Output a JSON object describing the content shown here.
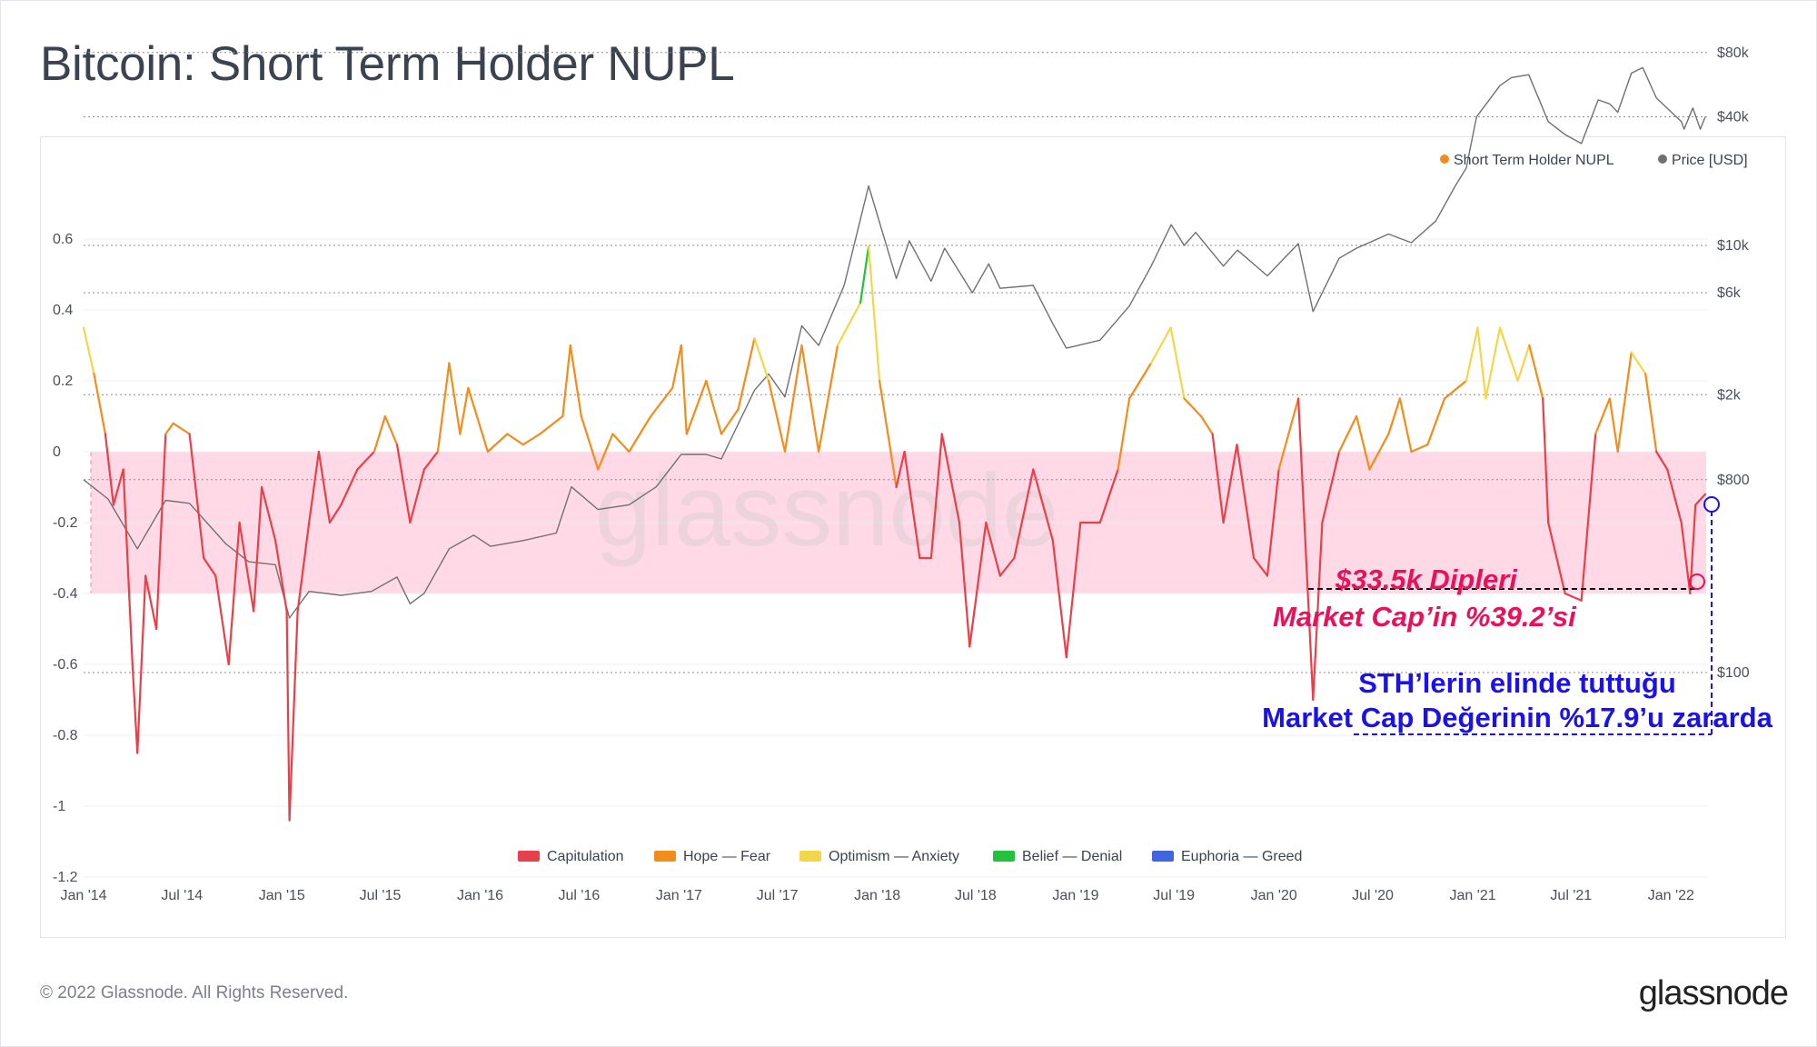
{
  "title": "Bitcoin: Short Term Holder NUPL",
  "footer": {
    "copyright": "© 2022 Glassnode. All Rights Reserved.",
    "brand": "glassnode"
  },
  "watermark": "glassnode",
  "colors": {
    "capitulation": "#e8404a",
    "hope_fear": "#f28c1a",
    "optimism_anxiety": "#f4d64a",
    "belief_denial": "#22c33a",
    "euphoria_greed": "#3f66e0",
    "price": "#707070",
    "zone_fill": "#ffd2e1",
    "annotation_pink": "#e8115a",
    "annotation_blue": "#1a12e8"
  },
  "chart_data": {
    "type": "line",
    "title": "Bitcoin: Short Term Holder NUPL",
    "top_legend": [
      {
        "name": "Short Term Holder NUPL",
        "color": "#f28c1a"
      },
      {
        "name": "Price [USD]",
        "color": "#707070"
      }
    ],
    "bottom_legend": [
      {
        "name": "Capitulation",
        "color": "#e8404a"
      },
      {
        "name": "Hope — Fear",
        "color": "#f28c1a"
      },
      {
        "name": "Optimism — Anxiety",
        "color": "#f4d64a"
      },
      {
        "name": "Belief — Denial",
        "color": "#22c33a"
      },
      {
        "name": "Euphoria — Greed",
        "color": "#3f66e0"
      }
    ],
    "x_ticks": [
      "Jan '14",
      "Jul '14",
      "Jan '15",
      "Jul '15",
      "Jan '16",
      "Jul '16",
      "Jan '17",
      "Jul '17",
      "Jan '18",
      "Jul '18",
      "Jan '19",
      "Jul '19",
      "Jan '20",
      "Jul '20",
      "Jan '21",
      "Jul '21",
      "Jan '22"
    ],
    "x_range": [
      "2014-01-01",
      "2022-03-10"
    ],
    "y_left": {
      "ticks": [
        "0.6",
        "0.4",
        "0.2",
        "0",
        "-0.2",
        "-0.4",
        "-0.6",
        "-0.8",
        "-1",
        "-1.2"
      ],
      "range": [
        -1.2,
        0.7
      ]
    },
    "y_right": {
      "ticks": [
        "$80k",
        "$40k",
        "$10k",
        "$6k",
        "$2k",
        "$800",
        "$100"
      ],
      "scale": "log"
    },
    "zone": {
      "from": -0.4,
      "to": 0
    },
    "nupl_series": {
      "name": "Short Term Holder NUPL",
      "points": [
        [
          "2014-01-01",
          0.35
        ],
        [
          "2014-01-20",
          0.22
        ],
        [
          "2014-02-10",
          0.05
        ],
        [
          "2014-02-25",
          -0.15
        ],
        [
          "2014-03-15",
          -0.05
        ],
        [
          "2014-04-01",
          -0.6
        ],
        [
          "2014-04-10",
          -0.85
        ],
        [
          "2014-04-25",
          -0.35
        ],
        [
          "2014-05-15",
          -0.5
        ],
        [
          "2014-06-01",
          0.05
        ],
        [
          "2014-06-15",
          0.08
        ],
        [
          "2014-07-15",
          0.05
        ],
        [
          "2014-08-10",
          -0.3
        ],
        [
          "2014-09-01",
          -0.35
        ],
        [
          "2014-09-25",
          -0.6
        ],
        [
          "2014-10-15",
          -0.2
        ],
        [
          "2014-11-10",
          -0.45
        ],
        [
          "2014-11-25",
          -0.1
        ],
        [
          "2014-12-20",
          -0.25
        ],
        [
          "2015-01-10",
          -0.45
        ],
        [
          "2015-01-15",
          -1.04
        ],
        [
          "2015-01-30",
          -0.45
        ],
        [
          "2015-02-20",
          -0.2
        ],
        [
          "2015-03-10",
          0.0
        ],
        [
          "2015-03-30",
          -0.2
        ],
        [
          "2015-04-20",
          -0.15
        ],
        [
          "2015-05-20",
          -0.05
        ],
        [
          "2015-06-20",
          0.0
        ],
        [
          "2015-07-10",
          0.1
        ],
        [
          "2015-08-01",
          0.02
        ],
        [
          "2015-08-25",
          -0.2
        ],
        [
          "2015-09-20",
          -0.05
        ],
        [
          "2015-10-15",
          0.0
        ],
        [
          "2015-11-05",
          0.25
        ],
        [
          "2015-11-25",
          0.05
        ],
        [
          "2015-12-10",
          0.18
        ],
        [
          "2016-01-15",
          0.0
        ],
        [
          "2016-02-20",
          0.05
        ],
        [
          "2016-03-20",
          0.02
        ],
        [
          "2016-04-20",
          0.05
        ],
        [
          "2016-06-01",
          0.1
        ],
        [
          "2016-06-15",
          0.3
        ],
        [
          "2016-07-05",
          0.1
        ],
        [
          "2016-08-05",
          -0.05
        ],
        [
          "2016-09-01",
          0.05
        ],
        [
          "2016-10-01",
          0.0
        ],
        [
          "2016-11-10",
          0.1
        ],
        [
          "2016-12-20",
          0.18
        ],
        [
          "2017-01-05",
          0.3
        ],
        [
          "2017-01-15",
          0.05
        ],
        [
          "2017-02-20",
          0.2
        ],
        [
          "2017-03-20",
          0.05
        ],
        [
          "2017-04-20",
          0.12
        ],
        [
          "2017-05-20",
          0.32
        ],
        [
          "2017-06-15",
          0.2
        ],
        [
          "2017-07-15",
          0.0
        ],
        [
          "2017-08-15",
          0.3
        ],
        [
          "2017-09-15",
          0.0
        ],
        [
          "2017-10-20",
          0.3
        ],
        [
          "2017-12-01",
          0.42
        ],
        [
          "2017-12-16",
          0.58
        ],
        [
          "2018-01-05",
          0.2
        ],
        [
          "2018-02-05",
          -0.1
        ],
        [
          "2018-02-20",
          0.0
        ],
        [
          "2018-03-20",
          -0.3
        ],
        [
          "2018-04-10",
          -0.3
        ],
        [
          "2018-04-30",
          0.05
        ],
        [
          "2018-06-01",
          -0.2
        ],
        [
          "2018-06-20",
          -0.55
        ],
        [
          "2018-07-20",
          -0.2
        ],
        [
          "2018-08-15",
          -0.35
        ],
        [
          "2018-09-10",
          -0.3
        ],
        [
          "2018-10-15",
          -0.05
        ],
        [
          "2018-11-20",
          -0.25
        ],
        [
          "2018-12-15",
          -0.58
        ],
        [
          "2019-01-10",
          -0.2
        ],
        [
          "2019-02-15",
          -0.2
        ],
        [
          "2019-03-20",
          -0.05
        ],
        [
          "2019-04-10",
          0.15
        ],
        [
          "2019-05-20",
          0.25
        ],
        [
          "2019-06-25",
          0.35
        ],
        [
          "2019-07-20",
          0.15
        ],
        [
          "2019-08-20",
          0.1
        ],
        [
          "2019-09-10",
          0.05
        ],
        [
          "2019-09-30",
          -0.2
        ],
        [
          "2019-10-25",
          0.02
        ],
        [
          "2019-11-25",
          -0.3
        ],
        [
          "2019-12-20",
          -0.35
        ],
        [
          "2020-01-10",
          -0.05
        ],
        [
          "2020-02-15",
          0.15
        ],
        [
          "2020-03-13",
          -0.7
        ],
        [
          "2020-03-30",
          -0.2
        ],
        [
          "2020-04-30",
          0.0
        ],
        [
          "2020-06-01",
          0.1
        ],
        [
          "2020-06-25",
          -0.05
        ],
        [
          "2020-07-30",
          0.05
        ],
        [
          "2020-08-20",
          0.15
        ],
        [
          "2020-09-10",
          0.0
        ],
        [
          "2020-10-10",
          0.02
        ],
        [
          "2020-11-10",
          0.15
        ],
        [
          "2020-12-20",
          0.2
        ],
        [
          "2021-01-10",
          0.35
        ],
        [
          "2021-01-25",
          0.15
        ],
        [
          "2021-02-20",
          0.35
        ],
        [
          "2021-03-25",
          0.2
        ],
        [
          "2021-04-15",
          0.3
        ],
        [
          "2021-05-10",
          0.15
        ],
        [
          "2021-05-20",
          -0.2
        ],
        [
          "2021-06-20",
          -0.4
        ],
        [
          "2021-07-20",
          -0.42
        ],
        [
          "2021-08-15",
          0.05
        ],
        [
          "2021-09-10",
          0.15
        ],
        [
          "2021-09-25",
          0.0
        ],
        [
          "2021-10-20",
          0.28
        ],
        [
          "2021-11-15",
          0.22
        ],
        [
          "2021-12-05",
          0.0
        ],
        [
          "2021-12-25",
          -0.05
        ],
        [
          "2022-01-20",
          -0.2
        ],
        [
          "2022-02-05",
          -0.4
        ],
        [
          "2022-02-15",
          -0.15
        ],
        [
          "2022-03-05",
          -0.12
        ]
      ]
    },
    "price_series": {
      "name": "Price [USD]",
      "points": [
        [
          "2014-01-01",
          800
        ],
        [
          "2014-02-15",
          650
        ],
        [
          "2014-04-10",
          380
        ],
        [
          "2014-06-01",
          640
        ],
        [
          "2014-07-15",
          620
        ],
        [
          "2014-09-20",
          400
        ],
        [
          "2014-11-01",
          330
        ],
        [
          "2014-12-20",
          320
        ],
        [
          "2015-01-15",
          180
        ],
        [
          "2015-02-20",
          240
        ],
        [
          "2015-04-20",
          230
        ],
        [
          "2015-06-15",
          240
        ],
        [
          "2015-08-01",
          280
        ],
        [
          "2015-08-25",
          210
        ],
        [
          "2015-09-20",
          235
        ],
        [
          "2015-11-05",
          380
        ],
        [
          "2015-12-20",
          440
        ],
        [
          "2016-01-20",
          390
        ],
        [
          "2016-03-20",
          415
        ],
        [
          "2016-05-20",
          450
        ],
        [
          "2016-06-17",
          740
        ],
        [
          "2016-08-05",
          580
        ],
        [
          "2016-10-01",
          610
        ],
        [
          "2016-11-20",
          740
        ],
        [
          "2017-01-05",
          1050
        ],
        [
          "2017-02-20",
          1050
        ],
        [
          "2017-03-20",
          1000
        ],
        [
          "2017-05-20",
          2100
        ],
        [
          "2017-06-15",
          2500
        ],
        [
          "2017-07-15",
          1950
        ],
        [
          "2017-08-15",
          4200
        ],
        [
          "2017-09-15",
          3400
        ],
        [
          "2017-11-01",
          6500
        ],
        [
          "2017-12-16",
          19000
        ],
        [
          "2018-02-05",
          7000
        ],
        [
          "2018-03-01",
          10500
        ],
        [
          "2018-04-10",
          6800
        ],
        [
          "2018-05-05",
          9700
        ],
        [
          "2018-06-25",
          6000
        ],
        [
          "2018-07-25",
          8200
        ],
        [
          "2018-08-15",
          6300
        ],
        [
          "2018-10-15",
          6500
        ],
        [
          "2018-11-20",
          4300
        ],
        [
          "2018-12-15",
          3300
        ],
        [
          "2019-02-15",
          3600
        ],
        [
          "2019-04-10",
          5200
        ],
        [
          "2019-05-20",
          8000
        ],
        [
          "2019-06-26",
          12500
        ],
        [
          "2019-07-20",
          10000
        ],
        [
          "2019-08-10",
          11500
        ],
        [
          "2019-09-30",
          8000
        ],
        [
          "2019-10-26",
          9500
        ],
        [
          "2019-12-20",
          7200
        ],
        [
          "2020-02-15",
          10200
        ],
        [
          "2020-03-13",
          4900
        ],
        [
          "2020-04-30",
          8700
        ],
        [
          "2020-06-01",
          9700
        ],
        [
          "2020-07-30",
          11300
        ],
        [
          "2020-09-10",
          10300
        ],
        [
          "2020-10-25",
          13000
        ],
        [
          "2020-11-30",
          19000
        ],
        [
          "2020-12-20",
          23000
        ],
        [
          "2021-01-08",
          40000
        ],
        [
          "2021-02-20",
          56000
        ],
        [
          "2021-03-13",
          61000
        ],
        [
          "2021-04-14",
          63000
        ],
        [
          "2021-05-20",
          38000
        ],
        [
          "2021-06-20",
          33000
        ],
        [
          "2021-07-20",
          30000
        ],
        [
          "2021-08-20",
          48000
        ],
        [
          "2021-09-10",
          46000
        ],
        [
          "2021-09-25",
          42000
        ],
        [
          "2021-10-20",
          64000
        ],
        [
          "2021-11-10",
          68000
        ],
        [
          "2021-12-05",
          49000
        ],
        [
          "2022-01-20",
          38000
        ],
        [
          "2022-01-25",
          35000
        ],
        [
          "2022-02-10",
          44000
        ],
        [
          "2022-02-24",
          35000
        ],
        [
          "2022-03-05",
          40000
        ]
      ]
    },
    "annotations": [
      {
        "text": "$33.5k Dipleri"
      },
      {
        "text": "Market Cap’in %39.2’si"
      },
      {
        "text": "STH’lerin elinde tuttuğu"
      },
      {
        "text": "Market Cap Değerinin %17.9’u zararda"
      }
    ]
  }
}
